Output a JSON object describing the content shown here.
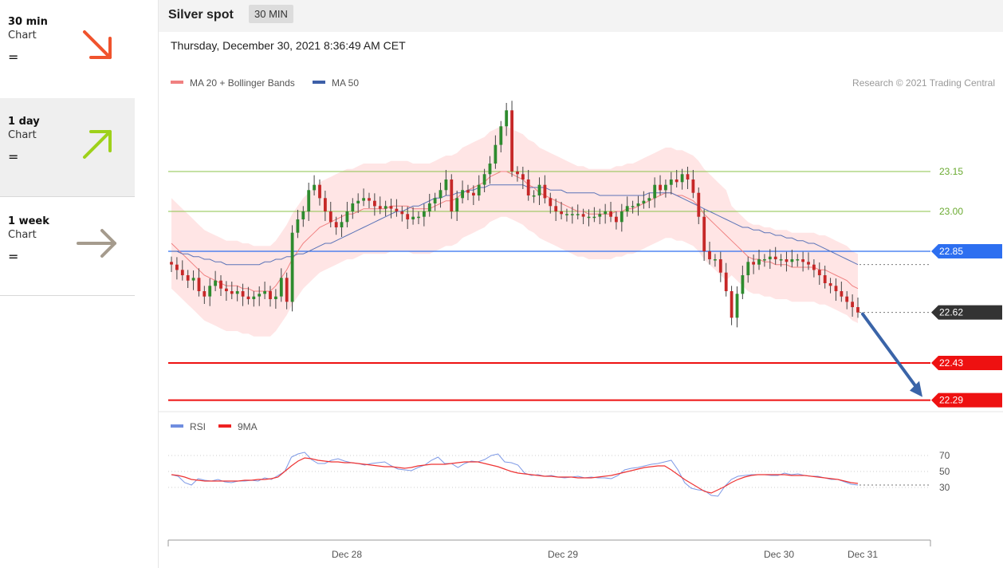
{
  "sidebar": {
    "items": [
      {
        "name": "30 min",
        "sub": "Chart",
        "eq": "=",
        "arrow": "down-right-arrow-icon",
        "color": "#f0532d"
      },
      {
        "name": "1 day",
        "sub": "Chart",
        "eq": "=",
        "arrow": "up-right-arrow-icon",
        "color": "#9ed11a"
      },
      {
        "name": "1 week",
        "sub": "Chart",
        "eq": "=",
        "arrow": "right-arrow-icon",
        "color": "#a59b8d"
      }
    ]
  },
  "header": {
    "title": "Silver spot",
    "timeframe": "30 MIN",
    "datetime": "Thursday, December 30, 2021 8:36:49 AM CET"
  },
  "chart_data": [
    {
      "type": "candlestick",
      "legend": [
        {
          "label": "MA 20 + Bollinger Bands",
          "color": "#f08080"
        },
        {
          "label": "MA 50",
          "color": "#3d5fa8"
        }
      ],
      "credit": "Research © 2021 Trading Central",
      "x_ticks": [
        "Dec 28",
        "Dec 29",
        "Dec 30",
        "Dec 31"
      ],
      "ylim": [
        22.2,
        23.5
      ],
      "last_price": 22.62,
      "levels": [
        {
          "value": 23.15,
          "label": "23.15",
          "kind": "resistance",
          "color": "#8bc34a"
        },
        {
          "value": 23.0,
          "label": "23.00",
          "kind": "resistance",
          "color": "#8bc34a"
        },
        {
          "value": 22.85,
          "label": "22.85",
          "kind": "pivot",
          "color": "#2d6ff0"
        },
        {
          "value": 22.62,
          "label": "22.62",
          "kind": "last",
          "color": "#333333"
        },
        {
          "value": 22.43,
          "label": "22.43",
          "kind": "support",
          "color": "#ee1111"
        },
        {
          "value": 22.29,
          "label": "22.29",
          "kind": "support",
          "color": "#ee1111"
        }
      ],
      "forecast": {
        "from": 22.62,
        "to": 22.29,
        "color": "#3a64a8"
      },
      "close": [
        22.8,
        22.78,
        22.76,
        22.74,
        22.75,
        22.7,
        22.68,
        22.72,
        22.74,
        22.71,
        22.7,
        22.69,
        22.7,
        22.68,
        22.67,
        22.68,
        22.69,
        22.7,
        22.67,
        22.68,
        22.75,
        22.66,
        22.92,
        22.97,
        23.0,
        23.08,
        23.1,
        23.05,
        23.0,
        22.96,
        22.94,
        22.96,
        23.0,
        23.03,
        23.04,
        23.05,
        23.04,
        23.02,
        23.01,
        23.02,
        23.01,
        23.0,
        22.99,
        22.97,
        22.98,
        22.98,
        23.0,
        23.03,
        23.05,
        23.08,
        23.12,
        23.0,
        23.05,
        23.08,
        23.07,
        23.06,
        23.1,
        23.14,
        23.18,
        23.25,
        23.32,
        23.38,
        23.15,
        23.14,
        23.12,
        23.06,
        23.06,
        23.1,
        23.05,
        23.02,
        23.0,
        22.99,
        22.99,
        22.99,
        22.99,
        22.98,
        22.98,
        22.98,
        22.99,
        23.0,
        22.98,
        22.96,
        23.0,
        23.02,
        23.02,
        23.03,
        23.04,
        23.05,
        23.1,
        23.08,
        23.1,
        23.12,
        23.11,
        23.14,
        23.12,
        23.07,
        22.98,
        22.85,
        22.82,
        22.82,
        22.77,
        22.7,
        22.6,
        22.69,
        22.76,
        22.81,
        22.8,
        22.82,
        22.82,
        22.83,
        22.82,
        22.82,
        22.81,
        22.82,
        22.82,
        22.81,
        22.8,
        22.78,
        22.76,
        22.73,
        22.72,
        22.7,
        22.68,
        22.66,
        22.64,
        22.62
      ],
      "ma20": [
        22.88,
        22.86,
        22.84,
        22.82,
        22.8,
        22.78,
        22.76,
        22.75,
        22.74,
        22.73,
        22.72,
        22.72,
        22.72,
        22.71,
        22.71,
        22.7,
        22.7,
        22.7,
        22.7,
        22.72,
        22.75,
        22.78,
        22.82,
        22.85,
        22.88,
        22.9,
        22.92,
        22.94,
        22.95,
        22.96,
        22.97,
        22.98,
        22.99,
        22.99,
        23.0,
        23.01,
        23.01,
        23.01,
        23.01,
        23.01,
        23.02,
        23.02,
        23.02,
        23.02,
        23.01,
        23.01,
        23.01,
        23.01,
        23.02,
        23.03,
        23.04,
        23.04,
        23.05,
        23.07,
        23.08,
        23.09,
        23.1,
        23.11,
        23.13,
        23.14,
        23.15,
        23.15,
        23.14,
        23.13,
        23.12,
        23.1,
        23.09,
        23.07,
        23.06,
        23.05,
        23.04,
        23.03,
        23.02,
        23.01,
        23.0,
        23.0,
        22.99,
        22.99,
        22.99,
        22.99,
        22.99,
        23.0,
        23.0,
        23.01,
        23.01,
        23.02,
        23.03,
        23.04,
        23.05,
        23.06,
        23.07,
        23.07,
        23.06,
        23.06,
        23.05,
        23.04,
        23.02,
        22.99,
        22.97,
        22.95,
        22.93,
        22.91,
        22.89,
        22.87,
        22.85,
        22.83,
        22.82,
        22.82,
        22.81,
        22.81,
        22.8,
        22.8,
        22.8,
        22.79,
        22.79,
        22.79,
        22.79,
        22.79,
        22.78,
        22.78,
        22.77,
        22.76,
        22.75,
        22.74,
        22.72,
        22.71
      ],
      "ma50": [
        22.85,
        22.85,
        22.84,
        22.84,
        22.83,
        22.83,
        22.82,
        22.82,
        22.81,
        22.81,
        22.8,
        22.8,
        22.8,
        22.8,
        22.8,
        22.8,
        22.8,
        22.81,
        22.81,
        22.82,
        22.82,
        22.83,
        22.83,
        22.84,
        22.84,
        22.85,
        22.86,
        22.87,
        22.88,
        22.88,
        22.89,
        22.9,
        22.91,
        22.92,
        22.93,
        22.94,
        22.95,
        22.96,
        22.97,
        22.98,
        22.99,
        23.0,
        23.0,
        23.01,
        23.02,
        23.02,
        23.03,
        23.04,
        23.05,
        23.05,
        23.06,
        23.06,
        23.07,
        23.07,
        23.08,
        23.08,
        23.09,
        23.09,
        23.1,
        23.1,
        23.1,
        23.1,
        23.1,
        23.1,
        23.1,
        23.09,
        23.09,
        23.09,
        23.09,
        23.08,
        23.08,
        23.08,
        23.07,
        23.07,
        23.07,
        23.07,
        23.07,
        23.07,
        23.06,
        23.06,
        23.06,
        23.06,
        23.06,
        23.06,
        23.06,
        23.06,
        23.06,
        23.07,
        23.07,
        23.07,
        23.07,
        23.07,
        23.06,
        23.05,
        23.04,
        23.03,
        23.02,
        23.01,
        23.0,
        22.99,
        22.98,
        22.97,
        22.96,
        22.95,
        22.94,
        22.94,
        22.93,
        22.93,
        22.92,
        22.92,
        22.91,
        22.91,
        22.9,
        22.9,
        22.89,
        22.89,
        22.88,
        22.88,
        22.87,
        22.86,
        22.85,
        22.84,
        22.83,
        22.82,
        22.81,
        22.8
      ]
    },
    {
      "type": "line",
      "legend": [
        {
          "label": "RSI",
          "color": "#6f8ee0"
        },
        {
          "label": "9MA",
          "color": "#ee2222"
        }
      ],
      "y_ticks": [
        70,
        50,
        30
      ],
      "ylim": [
        15,
        80
      ],
      "x_ticks": [
        "Dec 28",
        "Dec 29",
        "Dec 30",
        "Dec 31"
      ],
      "rsi": [
        46,
        44,
        36,
        33,
        41,
        39,
        38,
        40,
        37,
        36,
        38,
        38,
        39,
        38,
        42,
        40,
        45,
        50,
        68,
        72,
        74,
        65,
        60,
        60,
        64,
        66,
        63,
        61,
        60,
        58,
        60,
        61,
        62,
        57,
        53,
        52,
        51,
        55,
        58,
        64,
        68,
        60,
        60,
        55,
        60,
        63,
        62,
        65,
        70,
        72,
        62,
        61,
        58,
        48,
        45,
        46,
        44,
        45,
        43,
        42,
        43,
        44,
        42,
        43,
        42,
        42,
        41,
        45,
        52,
        54,
        55,
        57,
        59,
        60,
        62,
        64,
        52,
        36,
        29,
        27,
        26,
        20,
        19,
        31,
        40,
        44,
        45,
        46,
        46,
        46,
        45,
        45,
        48,
        46,
        47,
        45,
        44,
        44,
        42,
        40,
        40,
        37,
        34,
        33
      ],
      "ma9": [
        46,
        45,
        43,
        40,
        39,
        38,
        38,
        38,
        38,
        38,
        38,
        39,
        39,
        40,
        40,
        41,
        43,
        50,
        57,
        63,
        67,
        66,
        64,
        63,
        62,
        62,
        61,
        61,
        60,
        59,
        58,
        57,
        56,
        56,
        55,
        54,
        55,
        57,
        58,
        59,
        59,
        59,
        60,
        61,
        62,
        62,
        62,
        60,
        58,
        56,
        53,
        50,
        48,
        47,
        46,
        45,
        44,
        44,
        43,
        43,
        43,
        42,
        42,
        42,
        43,
        44,
        45,
        47,
        49,
        51,
        53,
        55,
        56,
        57,
        57,
        52,
        46,
        40,
        35,
        30,
        25,
        23,
        27,
        31,
        36,
        40,
        43,
        45,
        46,
        46,
        46,
        46,
        46,
        45,
        45,
        45,
        44,
        43,
        42,
        41,
        40,
        38,
        36,
        35
      ]
    }
  ]
}
